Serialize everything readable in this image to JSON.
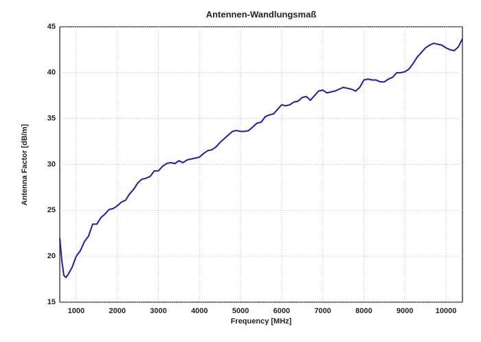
{
  "chart_data": {
    "type": "line",
    "title": "Antennen-Wandlungsmaß",
    "x_label": "Frequency [MHz]",
    "y_label": "Antenna Factor [dB/m]",
    "x": [
      600,
      650,
      700,
      750,
      800,
      900,
      1000,
      1100,
      1200,
      1300,
      1400,
      1500,
      1600,
      1700,
      1800,
      1900,
      2000,
      2100,
      2200,
      2300,
      2400,
      2500,
      2600,
      2700,
      2800,
      2900,
      3000,
      3100,
      3200,
      3300,
      3400,
      3500,
      3600,
      3700,
      3800,
      3900,
      4000,
      4100,
      4200,
      4300,
      4400,
      4500,
      4600,
      4700,
      4800,
      4900,
      5000,
      5100,
      5200,
      5300,
      5400,
      5500,
      5600,
      5700,
      5800,
      5900,
      6000,
      6100,
      6200,
      6300,
      6400,
      6500,
      6600,
      6700,
      6800,
      6900,
      7000,
      7100,
      7200,
      7300,
      7400,
      7500,
      7600,
      7700,
      7800,
      7900,
      8000,
      8100,
      8200,
      8300,
      8400,
      8500,
      8600,
      8700,
      8800,
      8900,
      9000,
      9100,
      9200,
      9300,
      9400,
      9500,
      9600,
      9700,
      9800,
      9900,
      10000,
      10100,
      10200,
      10300,
      10400
    ],
    "series": [
      {
        "name": "Antenna Factor",
        "color": "#1a1ab8",
        "values": [
          22.0,
          19.5,
          17.9,
          17.7,
          18.0,
          18.8,
          20.0,
          20.6,
          21.6,
          22.2,
          23.5,
          23.5,
          24.2,
          24.6,
          25.1,
          25.2,
          25.5,
          25.9,
          26.1,
          26.8,
          27.3,
          28.0,
          28.4,
          28.5,
          28.7,
          29.3,
          29.3,
          29.8,
          30.1,
          30.2,
          30.1,
          30.4,
          30.2,
          30.5,
          30.6,
          30.7,
          30.8,
          31.2,
          31.5,
          31.6,
          31.9,
          32.4,
          32.8,
          33.2,
          33.6,
          33.7,
          33.6,
          33.6,
          33.7,
          34.1,
          34.5,
          34.6,
          35.2,
          35.4,
          35.5,
          36.0,
          36.5,
          36.4,
          36.5,
          36.8,
          36.9,
          37.3,
          37.4,
          37.0,
          37.5,
          38.0,
          38.1,
          37.8,
          37.9,
          38.0,
          38.2,
          38.4,
          38.3,
          38.2,
          38.0,
          38.4,
          39.2,
          39.3,
          39.2,
          39.2,
          39.0,
          39.0,
          39.3,
          39.5,
          40.0,
          40.0,
          40.1,
          40.4,
          41.0,
          41.7,
          42.2,
          42.7,
          43.0,
          43.2,
          43.1,
          43.0,
          42.7,
          42.5,
          42.4,
          42.8,
          43.7
        ]
      }
    ],
    "xlim": [
      600,
      10400
    ],
    "ylim": [
      15,
      45
    ],
    "xticks": [
      1000,
      2000,
      3000,
      4000,
      5000,
      6000,
      7000,
      8000,
      9000,
      10000
    ],
    "yticks": [
      15,
      20,
      25,
      30,
      35,
      40,
      45
    ],
    "grid": true
  }
}
